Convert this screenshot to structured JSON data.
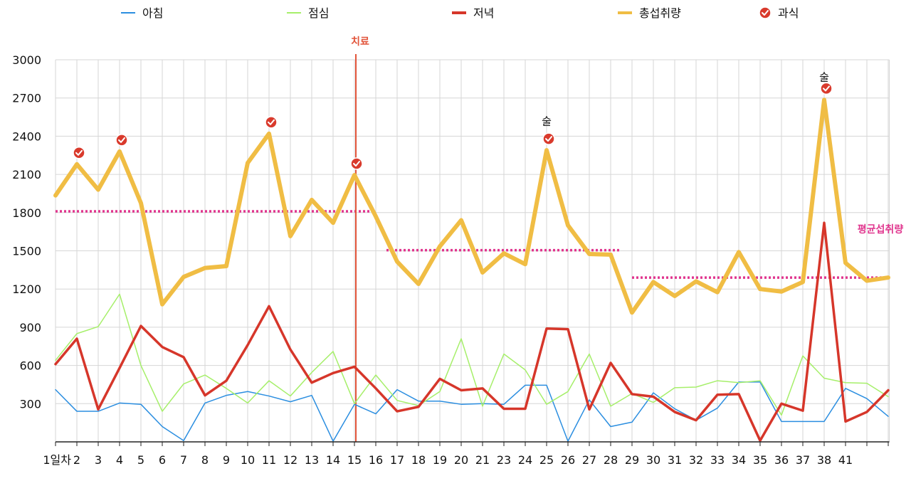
{
  "chart_data": {
    "type": "line",
    "ylim": [
      0,
      3000
    ],
    "yticks": [
      300,
      600,
      900,
      1200,
      1500,
      1800,
      2100,
      2400,
      2700,
      3000
    ],
    "x_tick_labels": [
      "1일차",
      "2",
      "3",
      "4",
      "5",
      "6",
      "7",
      "8",
      "9",
      "10",
      "11",
      "12",
      "13",
      "14",
      "15",
      "16",
      "17",
      "18",
      "19",
      "20",
      "21",
      "23",
      "24",
      "25",
      "26",
      "27",
      "28",
      "29",
      "30",
      "31",
      "32",
      "33",
      "34",
      "35",
      "36",
      "37",
      "38",
      "41",
      "",
      ""
    ],
    "grid": true,
    "legend_position": "top",
    "series": [
      {
        "name": "아침",
        "color": "#2b8ee0",
        "values": [
          410,
          240,
          240,
          305,
          295,
          120,
          10,
          305,
          365,
          395,
          360,
          315,
          365,
          5,
          295,
          220,
          410,
          320,
          320,
          295,
          300,
          295,
          445,
          445,
          5,
          330,
          120,
          155,
          385,
          260,
          170,
          265,
          470,
          470,
          160,
          160,
          160,
          420,
          340,
          200
        ]
      },
      {
        "name": "점심",
        "color": "#a6ef6a",
        "values": [
          640,
          850,
          905,
          1160,
          600,
          240,
          455,
          525,
          420,
          305,
          480,
          360,
          545,
          710,
          300,
          525,
          325,
          285,
          395,
          810,
          280,
          690,
          565,
          295,
          395,
          690,
          280,
          380,
          310,
          425,
          430,
          480,
          465,
          480,
          210,
          675,
          500,
          465,
          460,
          355
        ]
      },
      {
        "name": "저녁",
        "color": "#d6362a",
        "values": [
          610,
          810,
          255,
          580,
          910,
          745,
          665,
          365,
          480,
          760,
          1065,
          725,
          465,
          540,
          590,
          420,
          240,
          275,
          495,
          405,
          420,
          260,
          260,
          890,
          885,
          255,
          620,
          375,
          355,
          235,
          170,
          370,
          375,
          10,
          300,
          245,
          1720,
          160,
          235,
          405
        ]
      },
      {
        "name": "총섭취량",
        "color": "#f0bd44",
        "values": [
          1935,
          2180,
          1980,
          2280,
          1875,
          1080,
          1295,
          1365,
          1380,
          2190,
          2420,
          1615,
          1900,
          1720,
          2095,
          1770,
          1415,
          1240,
          1535,
          1740,
          1330,
          1480,
          1395,
          2290,
          1700,
          1475,
          1470,
          1015,
          1255,
          1145,
          1260,
          1175,
          1490,
          1200,
          1180,
          1255,
          2685,
          1405,
          1265,
          1290
        ]
      }
    ],
    "overeat_legend": "과식",
    "overeat_points": [
      1,
      3,
      10,
      14,
      23,
      36
    ],
    "overeat_color": "#d93a2c",
    "annotations": [
      {
        "text": "술",
        "index": 23,
        "value": 2490
      },
      {
        "text": "술",
        "index": 36,
        "value": 2835
      }
    ],
    "treatment_marker": {
      "label": "치료",
      "index": 14,
      "color": "#e2553b"
    },
    "average_lines": {
      "label": "평균섭취량",
      "color": "#e0368e",
      "segments": [
        {
          "from": 0,
          "to": 14.8,
          "value": 1810
        },
        {
          "from": 15.5,
          "to": 26.5,
          "value": 1505
        },
        {
          "from": 27,
          "to": 39,
          "value": 1290
        }
      ]
    }
  }
}
